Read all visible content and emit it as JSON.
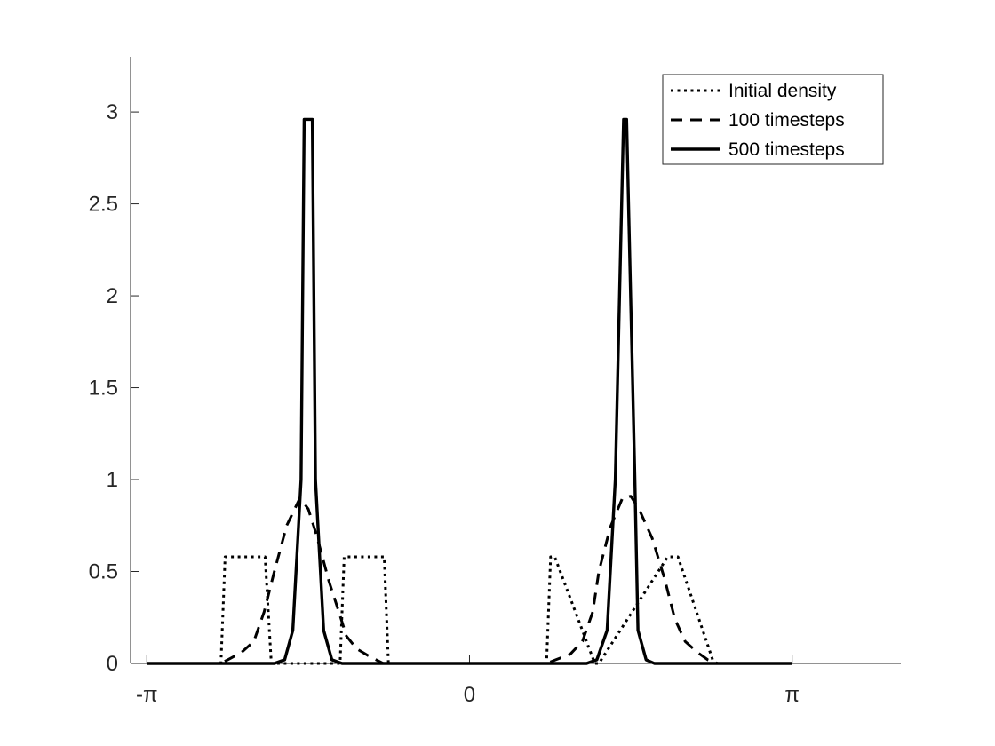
{
  "chart_data": {
    "type": "line",
    "title": "",
    "xlabel": "",
    "ylabel": "",
    "xlim": [
      -3.3,
      4.2
    ],
    "ylim": [
      0,
      3.3
    ],
    "xticks": [
      {
        "value": -3.14159,
        "label": "-π"
      },
      {
        "value": 0,
        "label": "0"
      },
      {
        "value": 3.14159,
        "label": "π"
      }
    ],
    "yticks": [
      {
        "value": 0,
        "label": "0"
      },
      {
        "value": 0.5,
        "label": "0.5"
      },
      {
        "value": 1,
        "label": "1"
      },
      {
        "value": 1.5,
        "label": "1.5"
      },
      {
        "value": 2,
        "label": "2"
      },
      {
        "value": 2.5,
        "label": "2.5"
      },
      {
        "value": 3,
        "label": "3"
      }
    ],
    "grid": false,
    "legend_position": "top-right",
    "colors": {
      "line": "#000000",
      "axis": "#262626",
      "background": "#ffffff"
    },
    "series": [
      {
        "name": "Initial density",
        "style": "dotted",
        "x": [
          -3.14,
          -2.42,
          -2.38,
          -2.03,
          -1.99,
          -1.93,
          -1.26,
          -1.22,
          -0.83,
          -0.79,
          -0.75,
          0,
          0.75,
          0.79,
          0.83,
          1.22,
          1.26,
          1.93,
          1.99,
          2.03,
          2.38,
          2.42,
          3.14
        ],
        "y": [
          0,
          0,
          0.58,
          0.58,
          0.58,
          0,
          0,
          0.58,
          0.58,
          0,
          0,
          0,
          0,
          0.58,
          0.58,
          0,
          0,
          0.58,
          0.58,
          0.58,
          0,
          0,
          0
        ]
      },
      {
        "name": "100 timesteps",
        "style": "dashed",
        "x": [
          -3.14,
          -2.42,
          -2.32,
          -2.22,
          -2.1,
          -2.0,
          -1.9,
          -1.78,
          -1.65,
          -1.57,
          -1.49,
          -1.37,
          -1.26,
          -1.2,
          -1.1,
          -0.98,
          -0.84,
          -0.75,
          0,
          0.75,
          0.84,
          0.98,
          1.1,
          1.2,
          1.26,
          1.37,
          1.49,
          1.57,
          1.65,
          1.78,
          1.9,
          2.0,
          2.1,
          2.22,
          2.32,
          2.42,
          3.14
        ],
        "y": [
          0,
          0,
          0.03,
          0.06,
          0.12,
          0.28,
          0.5,
          0.75,
          0.9,
          0.84,
          0.7,
          0.45,
          0.26,
          0.15,
          0.08,
          0.04,
          0,
          0,
          0,
          0,
          0.02,
          0.05,
          0.12,
          0.28,
          0.5,
          0.74,
          0.9,
          0.91,
          0.84,
          0.68,
          0.46,
          0.24,
          0.12,
          0.06,
          0.02,
          0,
          0
        ]
      },
      {
        "name": "500 timesteps",
        "style": "solid",
        "x": [
          -3.14,
          -1.9,
          -1.8,
          -1.72,
          -1.64,
          -1.61,
          -1.53,
          -1.5,
          -1.42,
          -1.34,
          -1.24,
          -1.14,
          0,
          1.14,
          1.24,
          1.34,
          1.42,
          1.5,
          1.53,
          1.61,
          1.64,
          1.72,
          1.8,
          1.9,
          3.14
        ],
        "y": [
          0,
          0,
          0.02,
          0.18,
          1.0,
          2.96,
          2.96,
          1.0,
          0.18,
          0.02,
          0,
          0,
          0,
          0,
          0.02,
          0.18,
          1.0,
          2.96,
          2.96,
          1.0,
          0.18,
          0.02,
          0,
          0,
          0
        ]
      }
    ]
  }
}
